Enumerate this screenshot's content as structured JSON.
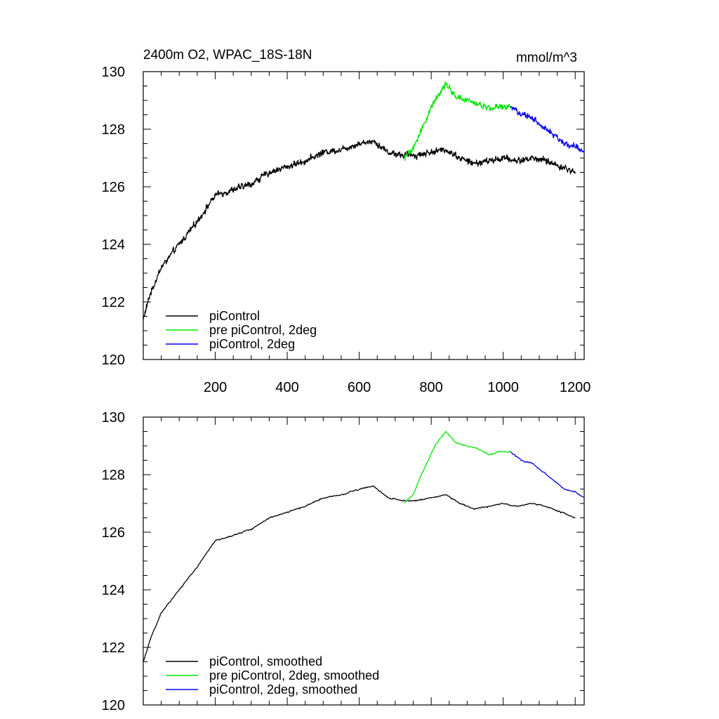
{
  "figure": {
    "title_left": "2400m O2, WPAC_18S-18N",
    "title_right": "mmol/m^3"
  },
  "colors": {
    "axis": "#000000",
    "piControl": "#000000",
    "pre_piControl_2deg": "#00e600",
    "piControl_2deg": "#0000ee"
  },
  "chart_data": [
    {
      "type": "line",
      "title": "2400m O2, WPAC_18S-18N",
      "units": "mmol/m^3",
      "xlabel": "",
      "ylabel": "",
      "xlim": [
        0,
        1225
      ],
      "ylim": [
        120,
        130
      ],
      "xticks": [
        200,
        400,
        600,
        800,
        1000,
        1200
      ],
      "xtick_labels": [
        "200",
        "400",
        "600",
        "800",
        "1000",
        "1200"
      ],
      "yticks": [
        120,
        122,
        124,
        126,
        128,
        130
      ],
      "ytick_labels": [
        "120",
        "122",
        "124",
        "126",
        "128",
        "130"
      ],
      "legend": "bottom-left",
      "noise": 0.14,
      "series": [
        {
          "name": "piControl",
          "color": "#000000",
          "x": [
            0,
            20,
            50,
            100,
            150,
            200,
            250,
            300,
            350,
            400,
            450,
            500,
            550,
            600,
            640,
            680,
            720,
            760,
            800,
            840,
            880,
            920,
            960,
            1000,
            1040,
            1080,
            1120,
            1160,
            1200
          ],
          "y": [
            121.4,
            122.3,
            123.2,
            124.0,
            124.8,
            125.7,
            125.9,
            126.1,
            126.5,
            126.7,
            126.9,
            127.2,
            127.3,
            127.5,
            127.6,
            127.2,
            127.1,
            127.1,
            127.2,
            127.3,
            127.0,
            126.8,
            126.9,
            127.0,
            126.9,
            127.0,
            126.9,
            126.7,
            126.5
          ]
        },
        {
          "name": "pre piControl, 2deg",
          "color": "#00e600",
          "x": [
            725,
            750,
            780,
            810,
            840,
            870,
            900,
            930,
            960,
            990,
            1020
          ],
          "y": [
            127.0,
            127.3,
            128.2,
            129.0,
            129.6,
            129.1,
            129.0,
            128.9,
            128.7,
            128.8,
            128.8
          ]
        },
        {
          "name": "piControl, 2deg",
          "color": "#0000ee",
          "x": [
            1020,
            1050,
            1080,
            1110,
            1140,
            1170,
            1200,
            1225
          ],
          "y": [
            128.8,
            128.5,
            128.4,
            128.1,
            127.8,
            127.5,
            127.4,
            127.2
          ]
        }
      ]
    },
    {
      "type": "line",
      "title": "",
      "xlabel": "",
      "ylabel": "",
      "xlim": [
        0,
        1225
      ],
      "ylim": [
        120,
        130
      ],
      "xticks": [
        200,
        400,
        600,
        800,
        1000,
        1200
      ],
      "xtick_labels": [],
      "yticks": [
        120,
        122,
        124,
        126,
        128,
        130
      ],
      "ytick_labels": [
        "120",
        "122",
        "124",
        "126",
        "128",
        "130"
      ],
      "legend": "bottom-left",
      "noise": 0.03,
      "series": [
        {
          "name": "piControl, smoothed",
          "color": "#000000",
          "x": [
            0,
            20,
            50,
            100,
            150,
            200,
            250,
            300,
            350,
            400,
            450,
            500,
            550,
            600,
            640,
            680,
            720,
            760,
            800,
            840,
            880,
            920,
            960,
            1000,
            1040,
            1080,
            1120,
            1160,
            1200
          ],
          "y": [
            121.5,
            122.3,
            123.2,
            124.0,
            124.8,
            125.7,
            125.9,
            126.1,
            126.5,
            126.7,
            126.9,
            127.2,
            127.3,
            127.5,
            127.6,
            127.2,
            127.1,
            127.1,
            127.2,
            127.3,
            127.0,
            126.8,
            126.9,
            127.0,
            126.9,
            127.0,
            126.9,
            126.7,
            126.5
          ]
        },
        {
          "name": "pre piControl, 2deg, smoothed",
          "color": "#00e600",
          "x": [
            725,
            750,
            780,
            810,
            840,
            870,
            900,
            930,
            960,
            990,
            1020
          ],
          "y": [
            127.0,
            127.3,
            128.2,
            129.0,
            129.5,
            129.1,
            129.0,
            128.9,
            128.7,
            128.8,
            128.8
          ]
        },
        {
          "name": "piControl, 2deg, smoothed",
          "color": "#0000ee",
          "x": [
            1020,
            1050,
            1080,
            1110,
            1140,
            1170,
            1200,
            1225
          ],
          "y": [
            128.8,
            128.5,
            128.4,
            128.1,
            127.8,
            127.5,
            127.4,
            127.2
          ]
        }
      ]
    }
  ]
}
